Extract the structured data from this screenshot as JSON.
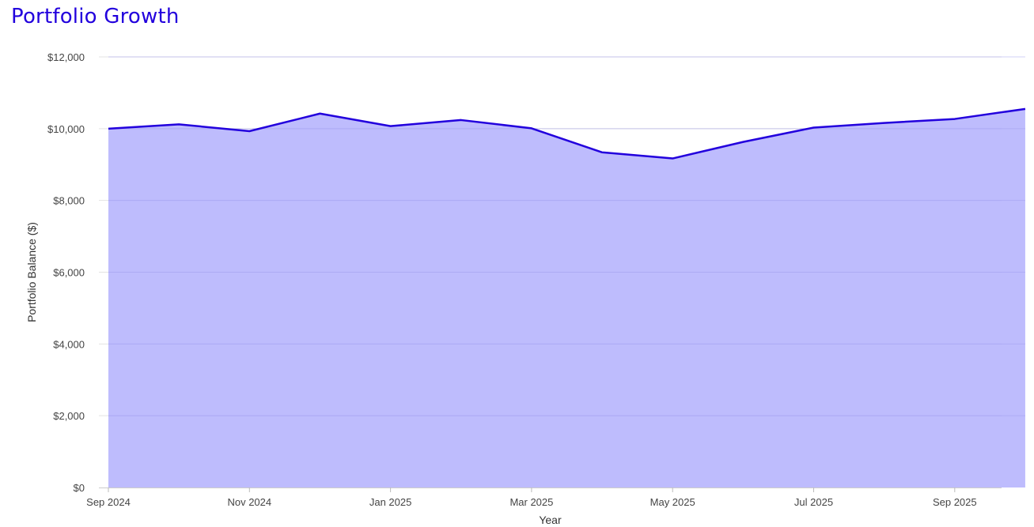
{
  "chart_data": {
    "type": "area",
    "title": "Portfolio Growth",
    "xlabel": "Year",
    "ylabel": "Portfolio Balance ($)",
    "ylim": [
      0,
      12000
    ],
    "xlim": [
      "2024-09",
      "2025-10"
    ],
    "y_ticks": [
      0,
      2000,
      4000,
      6000,
      8000,
      10000,
      12000
    ],
    "y_tick_labels": [
      "$0",
      "$2,000",
      "$4,000",
      "$6,000",
      "$8,000",
      "$10,000",
      "$12,000"
    ],
    "x_ticks": [
      "2024-09",
      "2024-11",
      "2025-01",
      "2025-03",
      "2025-05",
      "2025-07",
      "2025-09"
    ],
    "x_tick_labels": [
      "Sep 2024",
      "Nov 2024",
      "Jan 2025",
      "Mar 2025",
      "May 2025",
      "Jul 2025",
      "Sep 2025"
    ],
    "grid": true,
    "colors": {
      "line": "#2200dd",
      "fill": "#b3b0fd",
      "title": "#2200dd",
      "grid": "#e3e3e3"
    },
    "series": [
      {
        "x": [
          "2024-09",
          "2024-10",
          "2024-11",
          "2024-12",
          "2025-01",
          "2025-02",
          "2025-03",
          "2025-04",
          "2025-05",
          "2025-06",
          "2025-07",
          "2025-08",
          "2025-09",
          "2025-10"
        ],
        "values": [
          10000,
          10120,
          9930,
          10420,
          10070,
          10240,
          10010,
          9340,
          9170,
          9630,
          10030,
          10160,
          10270,
          10550
        ]
      }
    ]
  }
}
